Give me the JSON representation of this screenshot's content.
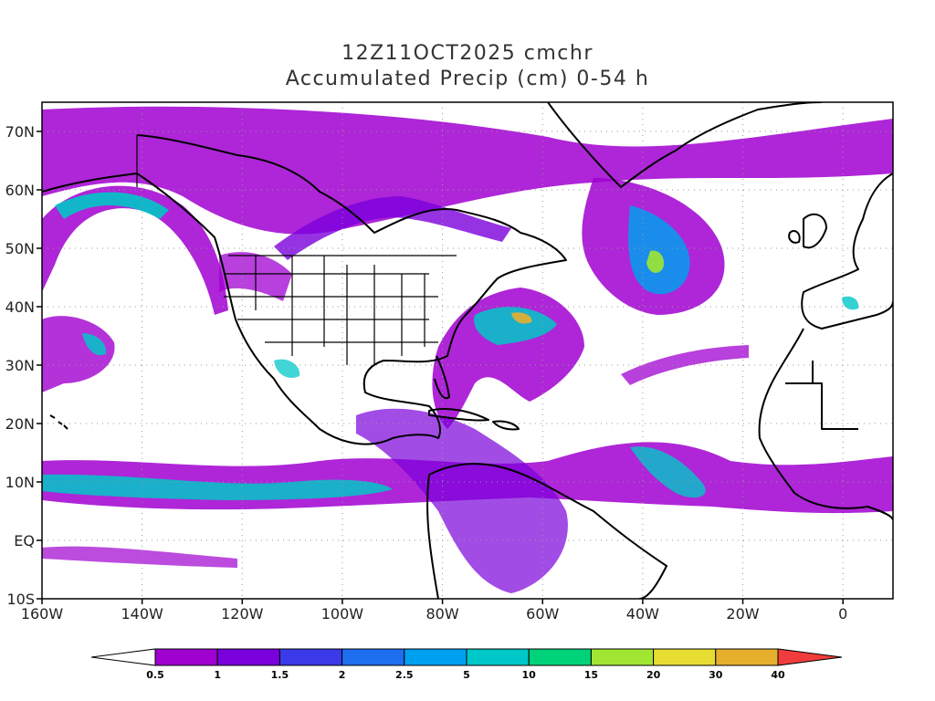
{
  "title": {
    "line1": "12Z11OCT2025 cmchr",
    "line2": "Accumulated Precip (cm) 0-54 h"
  },
  "axes": {
    "x_tick_labels": [
      "160W",
      "140W",
      "120W",
      "100W",
      "80W",
      "60W",
      "40W",
      "20W",
      "0"
    ],
    "y_tick_labels": [
      "70N",
      "60N",
      "50N",
      "40N",
      "30N",
      "20N",
      "10N",
      "EQ",
      "10S"
    ]
  },
  "colorbar": {
    "levels": [
      "0.5",
      "1",
      "1.5",
      "2",
      "2.5",
      "5",
      "10",
      "15",
      "20",
      "30",
      "40"
    ],
    "colors": [
      "#ffffff",
      "#a000d0",
      "#7a00dc",
      "#3a3ae8",
      "#1e6ef0",
      "#00a0f0",
      "#00c8c8",
      "#00d27a",
      "#a0e632",
      "#e6dc32",
      "#e6af2d",
      "#f08228",
      "#f03c3c"
    ]
  },
  "map": {
    "region": "North Atlantic / Americas",
    "lon_range": [
      -160,
      10
    ],
    "lat_range": [
      -10,
      75
    ],
    "land_color": "#ffffff",
    "coast_color": "#000000",
    "grid_color": "#999999"
  }
}
